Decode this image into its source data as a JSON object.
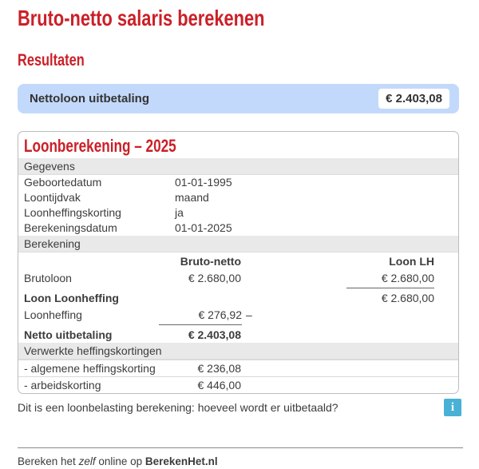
{
  "colors": {
    "accent_red": "#cb2027",
    "summary_bar_bg": "#c3d9fb",
    "section_header_bg": "#e9e9e9",
    "info_icon_bg": "#49b1d5"
  },
  "header": {
    "title": "Bruto-netto salaris berekenen",
    "results_heading": "Resultaten"
  },
  "summary": {
    "label": "Nettoloon uitbetaling",
    "value": "€ 2.403,08"
  },
  "card": {
    "title": "Loonberekening – 2025",
    "gegevens": {
      "header": "Gegevens",
      "rows": [
        {
          "label": "Geboortedatum",
          "value": "01-01-1995"
        },
        {
          "label": "Loontijdvak",
          "value": "maand"
        },
        {
          "label": "Loonheffingskorting",
          "value": "ja"
        },
        {
          "label": "Berekeningsdatum",
          "value": "01-01-2025"
        }
      ]
    },
    "berekening": {
      "header": "Berekening",
      "col_bruto_netto": "Bruto-netto",
      "col_loon_lh": "Loon LH",
      "rows": [
        {
          "label": "Brutoloon",
          "bruto": "€ 2.680,00",
          "dash": "",
          "loonlh": "€ 2.680,00"
        },
        {
          "label": "Loon Loonheffing",
          "bruto": "",
          "dash": "",
          "loonlh": "€ 2.680,00"
        },
        {
          "label": "Loonheffing",
          "bruto": "€ 276,92",
          "dash": "–",
          "loonlh": ""
        },
        {
          "label": "Netto uitbetaling",
          "bruto": "€ 2.403,08",
          "dash": "",
          "loonlh": ""
        }
      ]
    },
    "kortingen": {
      "header": "Verwerkte heffingskortingen",
      "rows": [
        {
          "label": "- algemene heffingskorting",
          "value": "€ 236,08"
        },
        {
          "label": "- arbeidskorting",
          "value": "€ 446,00"
        }
      ]
    }
  },
  "note": {
    "text": "Dit is een loonbelasting berekening: hoeveel wordt er uitbetaald?",
    "info_icon": "i"
  },
  "footer": {
    "part1": "Bereken het ",
    "part2": "zelf",
    "part3": " online op ",
    "part4": "BerekenHet.nl"
  }
}
